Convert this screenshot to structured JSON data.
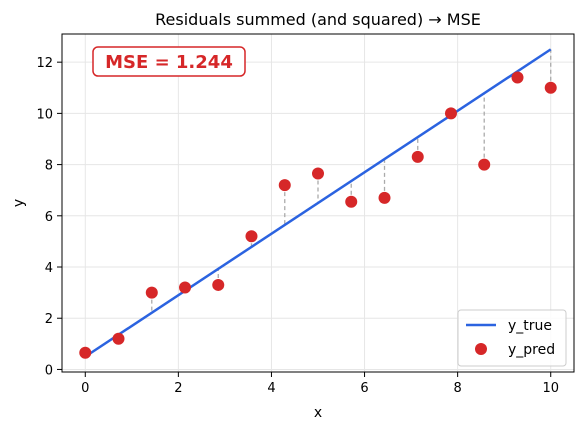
{
  "chart_data": {
    "type": "scatter",
    "title": "Residuals summed (and squared) → MSE",
    "xlabel": "x",
    "ylabel": "y",
    "xlim": [
      -0.5,
      10.5
    ],
    "ylim": [
      -0.1,
      13.1
    ],
    "xticks": [
      0,
      2,
      4,
      6,
      8,
      10
    ],
    "yticks": [
      0,
      2,
      4,
      6,
      8,
      10,
      12
    ],
    "grid": true,
    "legend_position": "bottom-right",
    "annotation": "MSE = 1.244",
    "series": [
      {
        "name": "y_true",
        "kind": "line",
        "color": "#2b63e0",
        "x": [
          0,
          10
        ],
        "y": [
          0.5,
          12.5
        ]
      },
      {
        "name": "y_pred",
        "kind": "scatter",
        "color": "#d62728",
        "x": [
          0,
          0.714,
          1.429,
          2.143,
          2.857,
          3.571,
          4.286,
          5.0,
          5.714,
          6.429,
          7.143,
          7.857,
          8.571,
          9.286,
          10.0
        ],
        "y": [
          0.65,
          1.2,
          3.0,
          3.2,
          3.3,
          5.2,
          7.2,
          7.65,
          6.55,
          6.7,
          8.3,
          10.0,
          8.0,
          11.4,
          11.0
        ]
      }
    ],
    "residual_color": "#aaaaaa"
  }
}
